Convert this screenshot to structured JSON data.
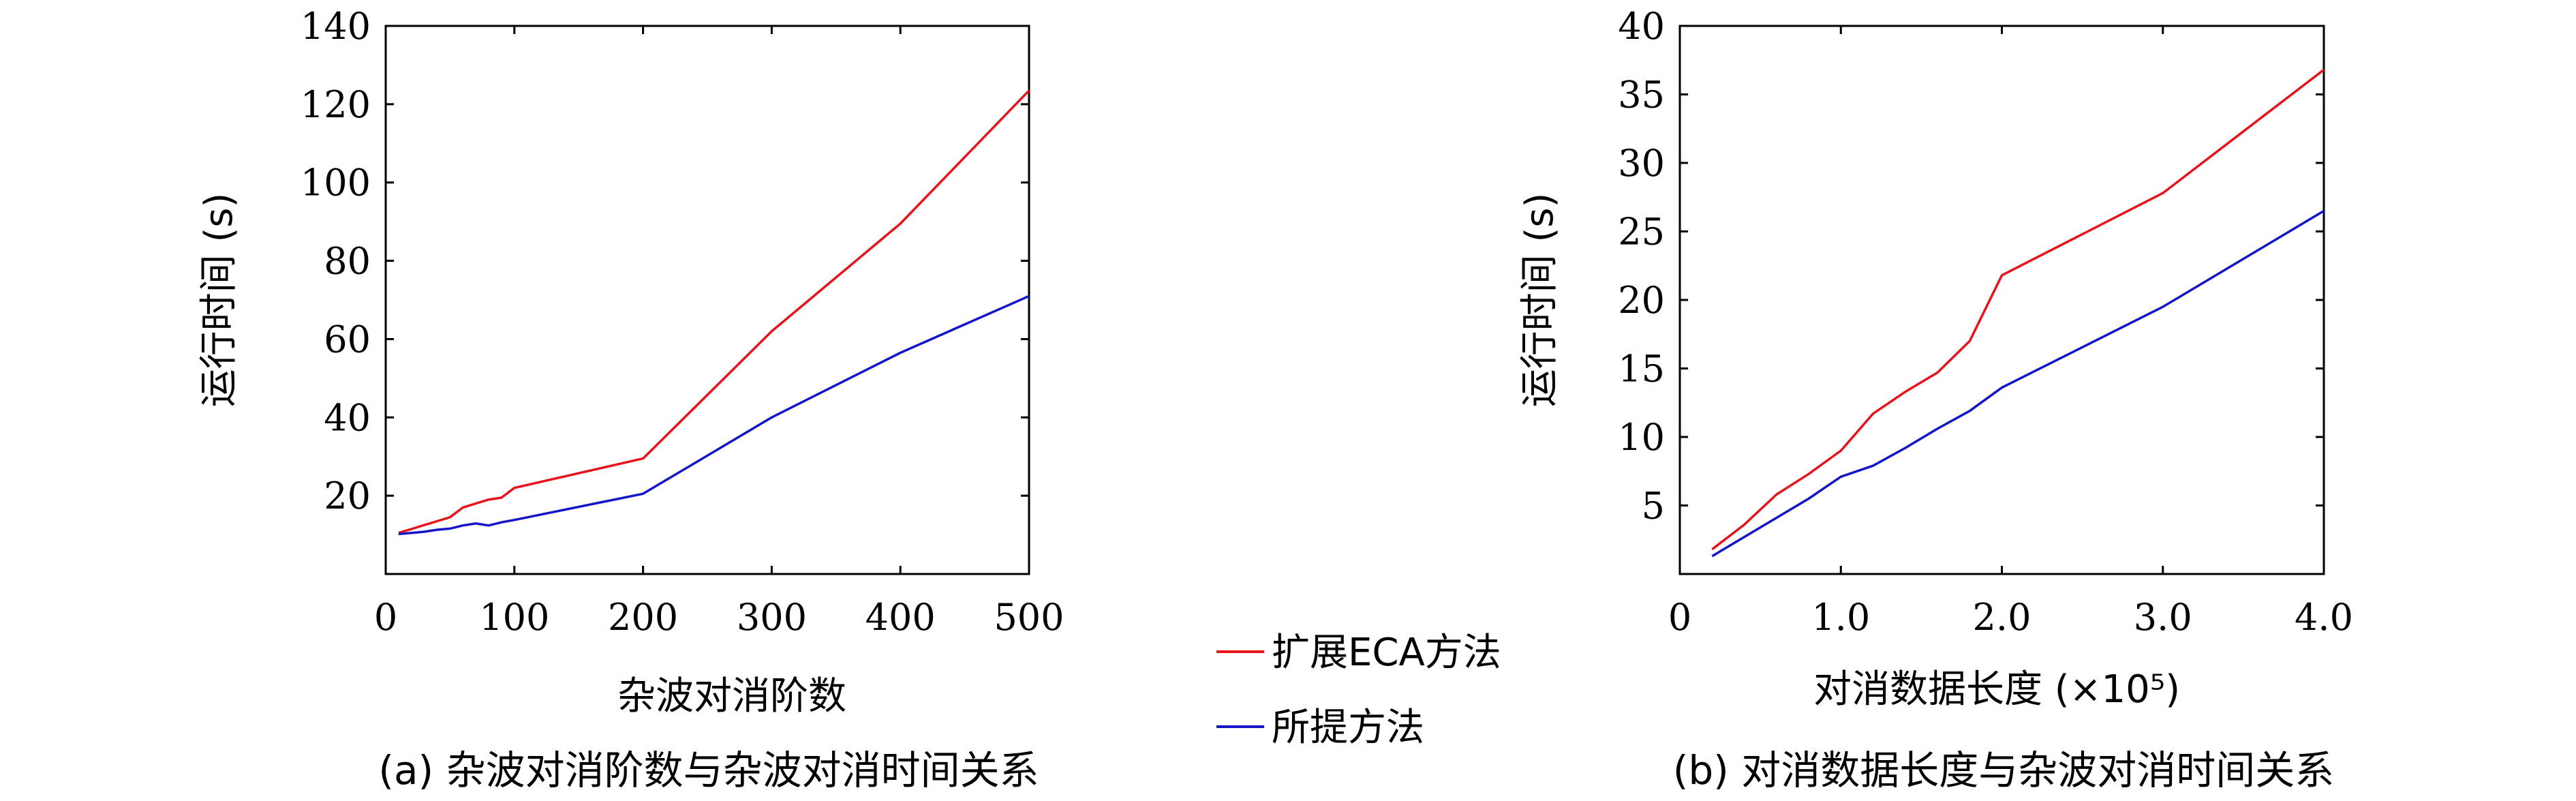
{
  "chart_data": [
    {
      "type": "line",
      "panel": "a",
      "caption": "(a) 杂波对消阶数与杂波对消时间关系",
      "xlabel": "杂波对消阶数",
      "ylabel": "运行时间 (s)",
      "xlim": [
        0,
        500
      ],
      "ylim": [
        0,
        140
      ],
      "x_ticks": [
        0,
        100,
        200,
        300,
        400,
        500
      ],
      "x_tick_labels": [
        "0",
        "100",
        "200",
        "300",
        "400",
        "500"
      ],
      "y_ticks": [
        20,
        40,
        60,
        80,
        100,
        120,
        140
      ],
      "y_tick_labels": [
        "20",
        "40",
        "60",
        "80",
        "100",
        "120",
        "140"
      ],
      "series": [
        {
          "name": "扩展ECA方法",
          "color": "#e8141c",
          "x": [
            10,
            20,
            30,
            40,
            50,
            60,
            70,
            80,
            90,
            100,
            200,
            300,
            400,
            500
          ],
          "y": [
            10.5,
            11.5,
            12.5,
            13.5,
            14.5,
            17,
            18,
            19,
            19.5,
            22,
            29.5,
            62,
            89.5,
            123.5
          ]
        },
        {
          "name": "所提方法",
          "color": "#1414c8",
          "x": [
            10,
            20,
            30,
            40,
            50,
            60,
            70,
            80,
            90,
            100,
            200,
            300,
            400,
            500
          ],
          "y": [
            10.2,
            10.5,
            10.8,
            11.3,
            11.6,
            12.4,
            12.9,
            12.4,
            13.2,
            13.8,
            20.5,
            40,
            56.5,
            71
          ]
        }
      ]
    },
    {
      "type": "line",
      "panel": "b",
      "caption": "(b) 对消数据长度与杂波对消时间关系",
      "xlabel": "对消数据长度 (×10⁵)",
      "ylabel": "运行时间 (s)",
      "xlim": [
        0,
        4.0
      ],
      "ylim": [
        0,
        40
      ],
      "x_ticks": [
        0,
        1.0,
        2.0,
        3.0,
        4.0
      ],
      "x_tick_labels": [
        "0",
        "1.0",
        "2.0",
        "3.0",
        "4.0"
      ],
      "y_ticks": [
        5,
        10,
        15,
        20,
        25,
        30,
        35,
        40
      ],
      "y_tick_labels": [
        "5",
        "10",
        "15",
        "20",
        "25",
        "30",
        "35",
        "40"
      ],
      "series": [
        {
          "name": "扩展ECA方法",
          "color": "#e8141c",
          "x": [
            0.2,
            0.4,
            0.6,
            0.8,
            1.0,
            1.2,
            1.4,
            1.6,
            1.8,
            2.0,
            3.0,
            4.0
          ],
          "y": [
            1.8,
            3.6,
            5.8,
            7.3,
            9.0,
            11.7,
            13.3,
            14.7,
            17.0,
            21.8,
            27.8,
            36.8
          ]
        },
        {
          "name": "所提方法",
          "color": "#1414c8",
          "x": [
            0.2,
            0.4,
            0.6,
            0.8,
            1.0,
            1.2,
            1.4,
            1.6,
            1.8,
            2.0,
            3.0,
            4.0
          ],
          "y": [
            1.3,
            2.7,
            4.1,
            5.5,
            7.1,
            7.9,
            9.2,
            10.6,
            11.9,
            13.6,
            19.5,
            26.5
          ]
        }
      ]
    }
  ],
  "legend": {
    "items": [
      {
        "label": "扩展ECA方法",
        "color": "#e8141c"
      },
      {
        "label": "所提方法",
        "color": "#1414c8"
      }
    ]
  }
}
